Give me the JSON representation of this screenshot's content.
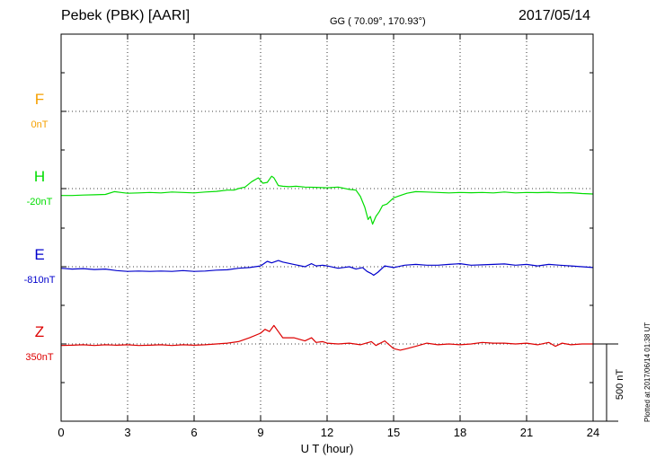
{
  "header": {
    "station": "Pebek (PBK)  [AARI]",
    "coords": "GG ( 70.09°, 170.93°)",
    "date": "2017/05/14"
  },
  "side_note": "Plotted at 2017/06/14 01:38 UT",
  "chart_data": {
    "type": "line",
    "xlabel": "U T (hour)",
    "xlim": [
      0,
      24
    ],
    "xticks": [
      "0",
      "3",
      "6",
      "9",
      "12",
      "15",
      "18",
      "21",
      "24"
    ],
    "scale_bar": {
      "label": "500 nT",
      "value_nT": 500
    },
    "components": [
      {
        "name": "F",
        "baseline": "0nT",
        "color": "#f5a000",
        "has_data": false,
        "values": []
      },
      {
        "name": "H",
        "baseline": "-20nT",
        "color": "#00dd00",
        "has_data": true,
        "x": [
          0,
          0.5,
          1,
          1.5,
          2,
          2.4,
          2.7,
          3,
          3.5,
          4,
          4.5,
          5,
          5.5,
          6,
          6.5,
          7,
          7.5,
          7.8,
          8,
          8.3,
          8.6,
          8.9,
          9.1,
          9.3,
          9.5,
          9.6,
          9.8,
          10,
          10.3,
          10.6,
          11,
          11.5,
          12,
          12.5,
          13,
          13.3,
          13.5,
          13.7,
          13.85,
          13.95,
          14.05,
          14.2,
          14.35,
          14.5,
          14.7,
          15,
          15.3,
          15.6,
          16,
          16.5,
          17,
          17.5,
          18,
          18.5,
          19,
          19.5,
          20,
          20.5,
          21,
          21.5,
          22,
          22.5,
          23,
          23.5,
          24
        ],
        "values": [
          -45,
          -45,
          -42,
          -40,
          -38,
          -20,
          -25,
          -30,
          -28,
          -25,
          -28,
          -22,
          -25,
          -28,
          -22,
          -18,
          -10,
          -10,
          0,
          10,
          45,
          70,
          35,
          40,
          80,
          70,
          20,
          15,
          12,
          15,
          10,
          8,
          5,
          10,
          -5,
          -10,
          -50,
          -120,
          -200,
          -180,
          -230,
          -180,
          -150,
          -110,
          -100,
          -60,
          -45,
          -30,
          -20,
          -22,
          -25,
          -28,
          -25,
          -27,
          -25,
          -28,
          -22,
          -28,
          -25,
          -26,
          -24,
          -28,
          -27,
          -32,
          -35
        ]
      },
      {
        "name": "E",
        "baseline": "-810nT",
        "color": "#0000cc",
        "has_data": true,
        "x": [
          0,
          0.5,
          1,
          1.5,
          2,
          2.5,
          3,
          3.5,
          4,
          4.5,
          5,
          5.5,
          6,
          6.5,
          7,
          7.5,
          8,
          8.5,
          9,
          9.3,
          9.5,
          9.8,
          10,
          10.5,
          11,
          11.3,
          11.5,
          11.8,
          12,
          12.5,
          13,
          13.3,
          13.6,
          13.8,
          14,
          14.1,
          14.3,
          14.6,
          15,
          15.5,
          16,
          16.5,
          17,
          17.5,
          18,
          18.5,
          19,
          19.5,
          20,
          20.5,
          21,
          21.5,
          22,
          22.5,
          23,
          23.5,
          24
        ],
        "values": [
          -10,
          -15,
          -12,
          -18,
          -15,
          -25,
          -30,
          -28,
          -30,
          -28,
          -30,
          -25,
          -30,
          -28,
          -22,
          -20,
          -10,
          -5,
          5,
          35,
          25,
          40,
          30,
          15,
          0,
          20,
          5,
          10,
          5,
          -10,
          0,
          -15,
          -5,
          -30,
          -45,
          -55,
          -35,
          5,
          -5,
          10,
          15,
          10,
          10,
          15,
          20,
          10,
          12,
          15,
          18,
          10,
          15,
          5,
          15,
          10,
          5,
          0,
          -5
        ]
      },
      {
        "name": "Z",
        "baseline": "350nT",
        "color": "#dd0000",
        "has_data": true,
        "x": [
          0,
          0.5,
          1,
          1.5,
          2,
          2.5,
          3,
          3.5,
          4,
          4.5,
          5,
          5.5,
          6,
          6.5,
          7,
          7.5,
          8,
          8.5,
          9,
          9.2,
          9.4,
          9.6,
          9.8,
          10,
          10.5,
          11,
          11.3,
          11.5,
          11.8,
          12,
          12.5,
          13,
          13.5,
          14,
          14.2,
          14.6,
          15,
          15.3,
          15.6,
          16,
          16.5,
          17,
          17.5,
          18,
          18.5,
          19,
          19.5,
          20,
          20.5,
          21,
          21.5,
          22,
          22.3,
          22.6,
          23,
          23.5,
          24
        ],
        "values": [
          -10,
          -8,
          -5,
          -10,
          -5,
          -8,
          -5,
          -10,
          -8,
          -5,
          -10,
          -5,
          -8,
          -5,
          0,
          5,
          15,
          40,
          70,
          95,
          80,
          120,
          80,
          40,
          40,
          20,
          40,
          10,
          15,
          5,
          0,
          5,
          -5,
          15,
          -10,
          20,
          -30,
          -40,
          -30,
          -15,
          5,
          -5,
          0,
          -5,
          0,
          10,
          5,
          5,
          0,
          5,
          -5,
          10,
          -15,
          5,
          -5,
          0,
          0
        ]
      }
    ]
  }
}
